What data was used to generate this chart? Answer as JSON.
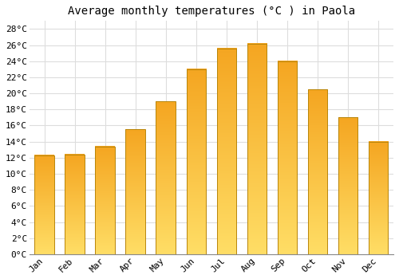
{
  "title": "Average monthly temperatures (°C ) in Paola",
  "months": [
    "Jan",
    "Feb",
    "Mar",
    "Apr",
    "May",
    "Jun",
    "Jul",
    "Aug",
    "Sep",
    "Oct",
    "Nov",
    "Dec"
  ],
  "temperatures": [
    12.3,
    12.4,
    13.4,
    15.5,
    19.0,
    23.0,
    25.6,
    26.2,
    24.0,
    20.5,
    17.0,
    14.0
  ],
  "bar_color_top": "#F5A623",
  "bar_color_bottom": "#FFD966",
  "bar_edge_color": "#B8860B",
  "background_color": "#FFFFFF",
  "grid_color": "#DDDDDD",
  "ylim": [
    0,
    29
  ],
  "yticks": [
    0,
    2,
    4,
    6,
    8,
    10,
    12,
    14,
    16,
    18,
    20,
    22,
    24,
    26,
    28
  ],
  "title_fontsize": 10,
  "tick_fontsize": 8,
  "font_family": "monospace"
}
